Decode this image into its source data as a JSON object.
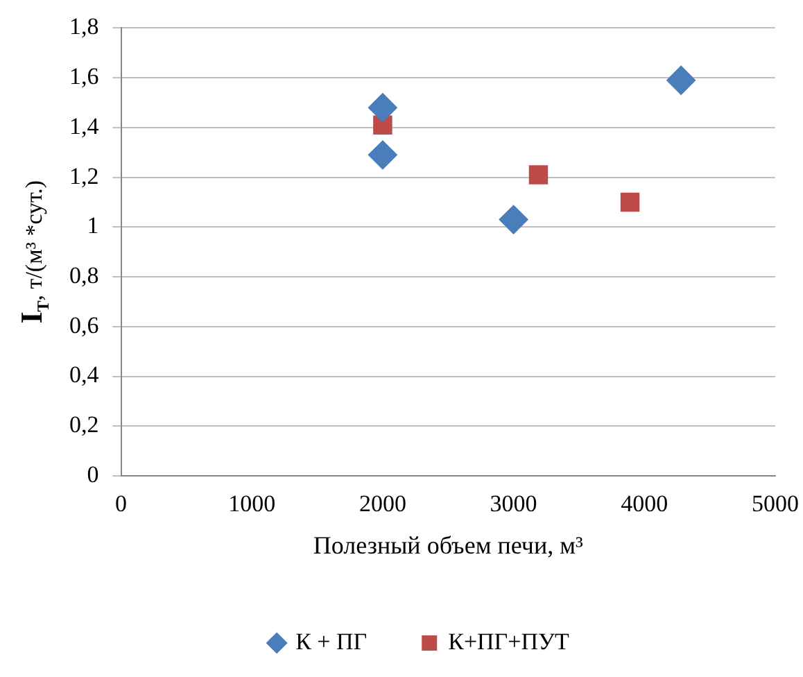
{
  "chart_data": {
    "type": "scatter",
    "xlabel": "Полезный объем печи, м³",
    "ylabel": "I$_{Т}$, т/(м³ *сут.)",
    "series": [
      {
        "name": "К + ПГ",
        "color": "#4a7ebb",
        "marker": "diamond",
        "x": [
          2000,
          2000,
          3000,
          4280
        ],
        "values": [
          1.48,
          1.29,
          1.03,
          1.59
        ]
      },
      {
        "name": "К+ПГ+ПУТ",
        "color": "#be4b48",
        "marker": "square",
        "x": [
          2000,
          3190,
          3890
        ],
        "values": [
          1.41,
          1.21,
          1.1
        ]
      }
    ],
    "xlim": [
      0,
      5000
    ],
    "xticks": [
      0,
      1000,
      2000,
      3000,
      4000,
      5000
    ],
    "ylim": [
      0,
      1.8
    ],
    "yticks": [
      0,
      {
        "value": 0.2,
        "label": "0,2"
      },
      {
        "value": 0.4,
        "label": "0,4"
      },
      {
        "value": 0.6,
        "label": "0,6"
      },
      {
        "value": 0.8,
        "label": "0,8"
      },
      1,
      {
        "value": 1.2,
        "label": "1,2"
      },
      {
        "value": 1.4,
        "label": "1,4"
      },
      {
        "value": 1.6,
        "label": "1,6"
      },
      {
        "value": 1.8,
        "label": "1,8"
      }
    ],
    "grid": "y",
    "legend": "bottom"
  }
}
